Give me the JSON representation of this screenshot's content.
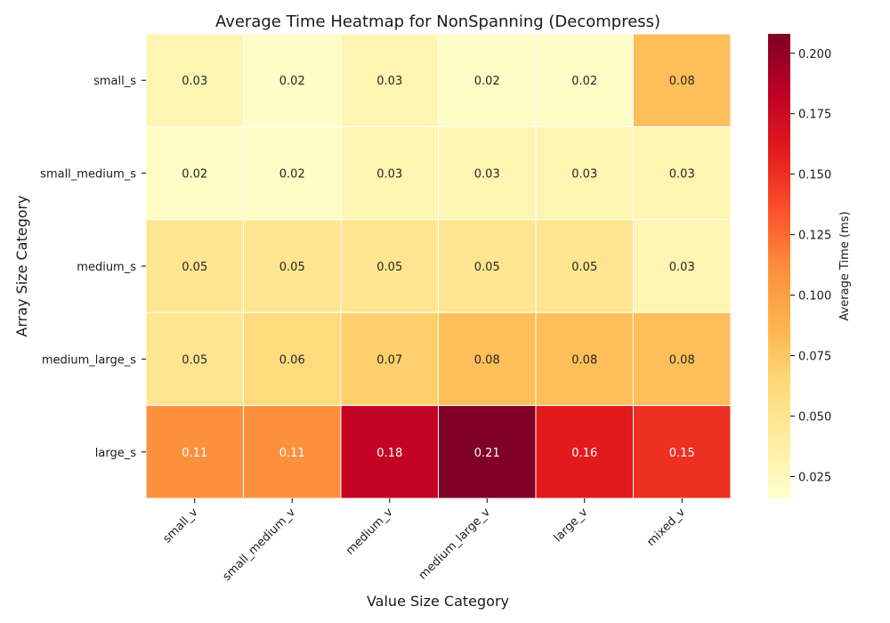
{
  "chart_data": {
    "type": "heatmap",
    "title": "Average Time Heatmap for NonSpanning (Decompress)",
    "xlabel": "Value Size Category",
    "ylabel": "Array Size Category",
    "x_categories": [
      "small_v",
      "small_medium_v",
      "medium_v",
      "medium_large_v",
      "large_v",
      "mixed_v"
    ],
    "y_categories": [
      "small_s",
      "small_medium_s",
      "medium_s",
      "medium_large_s",
      "large_s"
    ],
    "values": [
      [
        0.03,
        0.02,
        0.03,
        0.02,
        0.02,
        0.08
      ],
      [
        0.02,
        0.02,
        0.03,
        0.03,
        0.03,
        0.03
      ],
      [
        0.05,
        0.05,
        0.05,
        0.05,
        0.05,
        0.03
      ],
      [
        0.05,
        0.06,
        0.07,
        0.08,
        0.08,
        0.08
      ],
      [
        0.11,
        0.11,
        0.18,
        0.21,
        0.16,
        0.15
      ]
    ],
    "colorbar": {
      "label": "Average Time (ms)",
      "min": 0.016,
      "max": 0.208,
      "ticks": [
        "0.025",
        "0.050",
        "0.075",
        "0.100",
        "0.125",
        "0.150",
        "0.175",
        "0.200"
      ],
      "colormap": "YlOrRd"
    }
  }
}
